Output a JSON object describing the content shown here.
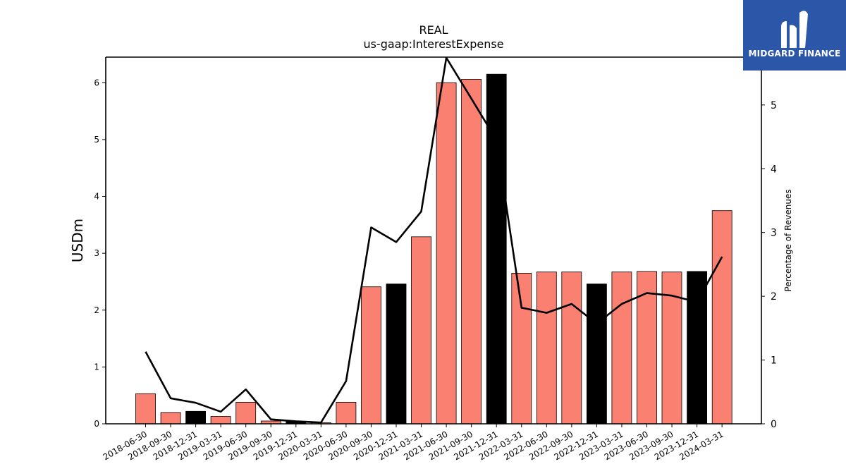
{
  "chart_data": {
    "type": "bar",
    "title": "REAL",
    "subtitle": "us-gaap:InterestExpense",
    "ylabel": "USDm",
    "y2label": "Percentage of Revenues",
    "ylim": [
      0,
      6.45
    ],
    "y2lim": [
      0,
      5.75
    ],
    "yticks": [
      0,
      1,
      2,
      3,
      4,
      5,
      6
    ],
    "y2ticks": [
      0,
      1,
      2,
      3,
      4,
      5
    ],
    "categories": [
      "2018-06-30",
      "2018-09-30",
      "2018-12-31",
      "2019-03-31",
      "2019-06-30",
      "2019-09-30",
      "2019-12-31",
      "2020-03-31",
      "2020-06-30",
      "2020-09-30",
      "2020-12-31",
      "2021-03-31",
      "2021-06-30",
      "2021-09-30",
      "2021-12-31",
      "2022-03-31",
      "2022-06-30",
      "2022-09-30",
      "2022-12-31",
      "2023-03-31",
      "2023-06-30",
      "2023-09-30",
      "2023-12-31",
      "2024-03-31"
    ],
    "series": [
      {
        "type": "bar",
        "axis": "left",
        "values": [
          0.53,
          0.2,
          0.22,
          0.13,
          0.38,
          0.05,
          0.04,
          0.02,
          0.38,
          2.41,
          2.46,
          3.29,
          6.0,
          6.06,
          6.15,
          2.65,
          2.67,
          2.67,
          2.46,
          2.67,
          2.68,
          2.67,
          2.68,
          3.75
        ],
        "fiscal_year_end": [
          false,
          false,
          true,
          false,
          false,
          false,
          true,
          false,
          false,
          false,
          true,
          false,
          false,
          false,
          true,
          false,
          false,
          false,
          true,
          false,
          false,
          false,
          true,
          false
        ]
      },
      {
        "type": "line",
        "axis": "right",
        "values": [
          1.13,
          0.4,
          0.33,
          0.19,
          0.54,
          0.07,
          0.04,
          0.02,
          0.67,
          3.08,
          2.85,
          3.33,
          5.74,
          5.1,
          4.45,
          1.82,
          1.74,
          1.88,
          1.57,
          1.88,
          2.05,
          2.01,
          1.91,
          2.62
        ]
      }
    ],
    "colors": {
      "bar": "#fa8072",
      "bar_fiscal_year_end": "#000000",
      "line": "#000000"
    }
  },
  "logo": {
    "text": "MIDGARD FINANCE",
    "background": "#2c56a8"
  }
}
